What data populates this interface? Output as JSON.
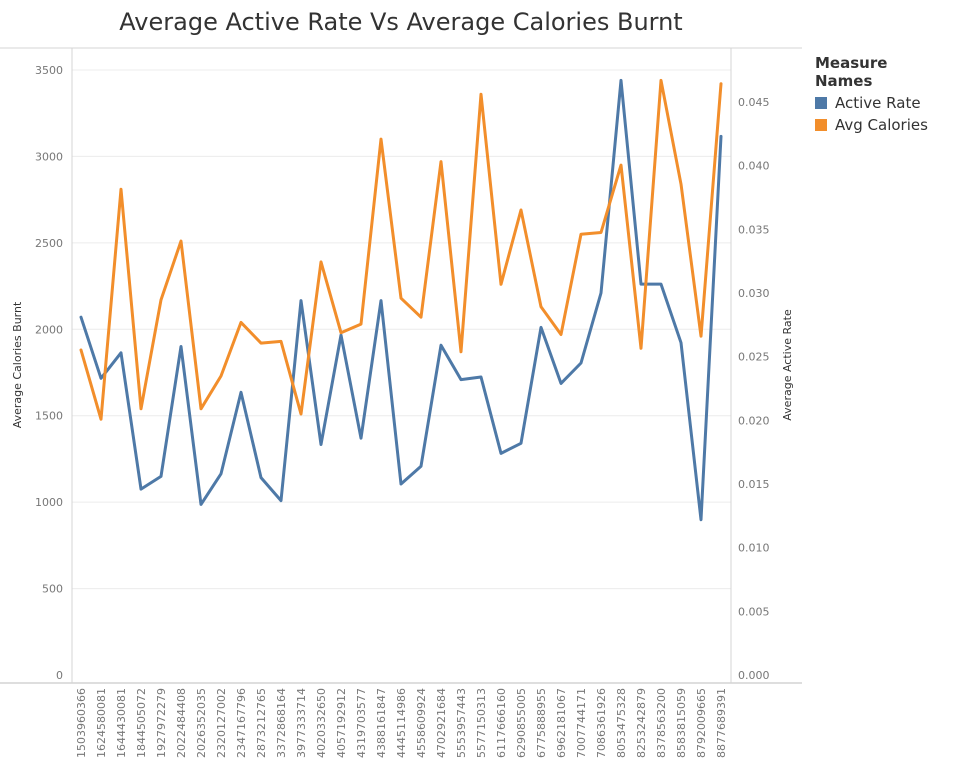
{
  "chart_data": {
    "type": "line",
    "title": "Average Active Rate Vs Average Calories Burnt",
    "ylabel_left": "Average Calories Burnt",
    "ylabel_right": "Average Active Rate",
    "ylim_left": [
      0,
      3500
    ],
    "ylim_right": [
      0,
      0.0475
    ],
    "yticks_left": [
      "0",
      "500",
      "1000",
      "1500",
      "2000",
      "2500",
      "3000",
      "3500"
    ],
    "yticks_right": [
      "0.000",
      "0.005",
      "0.010",
      "0.015",
      "0.020",
      "0.025",
      "0.030",
      "0.035",
      "0.040",
      "0.045"
    ],
    "grid": true,
    "legend": {
      "title": "Measure Names",
      "placement": "top-right",
      "entries": [
        {
          "label": "Active Rate",
          "color": "#4e79a7"
        },
        {
          "label": "Avg Calories",
          "color": "#f28e2b"
        }
      ]
    },
    "categories": [
      "1503960366",
      "1624580081",
      "1644430081",
      "1844505072",
      "1927972279",
      "2022484408",
      "2026352035",
      "2320127002",
      "2347167796",
      "2873212765",
      "3372868164",
      "3977333714",
      "4020332650",
      "4057192912",
      "4319703577",
      "4388161847",
      "4445114986",
      "4558609924",
      "4702921684",
      "5553957443",
      "5577150313",
      "6117666160",
      "6290855005",
      "6775888955",
      "6962181067",
      "7007744171",
      "7086361926",
      "8053475328",
      "8253242879",
      "8378563200",
      "8583815059",
      "8792009665",
      "8877689391"
    ],
    "series": [
      {
        "name": "Active Rate",
        "axis": "right",
        "color": "#4e79a7",
        "values": [
          0.0281,
          0.0233,
          0.0253,
          0.0146,
          0.0156,
          0.0258,
          0.0134,
          0.0158,
          0.0222,
          0.0155,
          0.0137,
          0.0294,
          0.0181,
          0.0267,
          0.0186,
          0.0294,
          0.015,
          0.0164,
          0.0259,
          0.0232,
          0.0234,
          0.0174,
          0.0182,
          0.0273,
          0.0229,
          0.0245,
          0.03,
          0.0467,
          0.0307,
          0.0307,
          0.0261,
          0.0122,
          0.0423
        ]
      },
      {
        "name": "Avg Calories",
        "axis": "left",
        "color": "#f28e2b",
        "values": [
          1880,
          1480,
          2810,
          1540,
          2170,
          2510,
          1540,
          1730,
          2040,
          1920,
          1930,
          1510,
          2390,
          1980,
          2030,
          3100,
          2180,
          2070,
          2970,
          1870,
          3360,
          2260,
          2690,
          2130,
          1970,
          2550,
          2560,
          2950,
          1890,
          3440,
          2840,
          1960,
          3420
        ]
      }
    ]
  }
}
